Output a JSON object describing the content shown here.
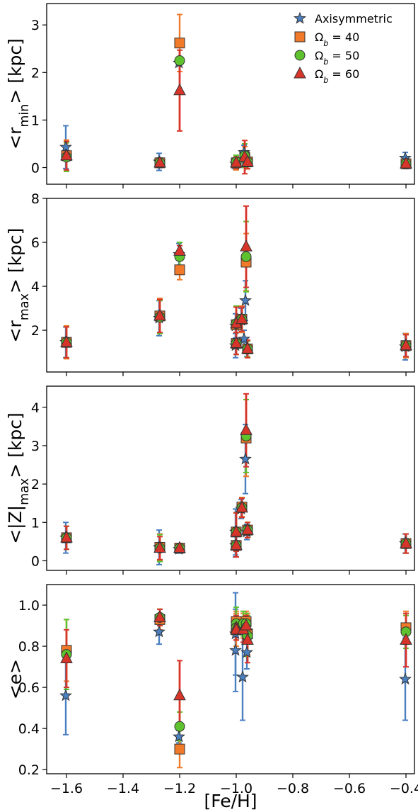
{
  "chart_data": [
    {
      "type": "scatter",
      "ylabel": "<r_min> [kpc]",
      "ylim": [
        -0.35,
        3.45
      ],
      "yticks": [
        0,
        1,
        2,
        3
      ],
      "xlim": [
        -1.67,
        -0.37
      ],
      "legend": {
        "placement": "top-right",
        "entries": [
          "Axisymmetric",
          "Ω_b = 40",
          "Ω_b = 50",
          "Ω_b = 60"
        ]
      },
      "series": [
        {
          "name": "Axisymmetric",
          "color": "#4a7fc0",
          "marker": "star",
          "points": [
            {
              "x": -1.6,
              "y": 0.43,
              "err": 0.45
            },
            {
              "x": -1.27,
              "y": 0.12,
              "err": 0.18
            },
            {
              "x": -1.2,
              "y": 2.2,
              "err": 0.0
            },
            {
              "x": -1.0,
              "y": 0.08,
              "err": 0.12
            },
            {
              "x": -0.97,
              "y": 0.32,
              "err": 0.15
            },
            {
              "x": -0.96,
              "y": 0.15,
              "err": 0.12
            },
            {
              "x": -0.4,
              "y": 0.2,
              "err": 0.12
            }
          ]
        },
        {
          "name": "Ω_b = 40",
          "color": "#f07a2a",
          "marker": "square",
          "points": [
            {
              "x": -1.6,
              "y": 0.25,
              "err": 0.33
            },
            {
              "x": -1.27,
              "y": 0.1,
              "err": 0.1
            },
            {
              "x": -1.2,
              "y": 2.62,
              "err": 0.6
            },
            {
              "x": -1.0,
              "y": 0.1,
              "err": 0.15
            },
            {
              "x": -0.97,
              "y": 0.22,
              "err": 0.22
            },
            {
              "x": -0.96,
              "y": 0.12,
              "err": 0.15
            },
            {
              "x": -0.4,
              "y": 0.08,
              "err": 0.1
            }
          ]
        },
        {
          "name": "Ω_b = 50",
          "color": "#5ec22e",
          "marker": "circle",
          "points": [
            {
              "x": -1.6,
              "y": 0.22,
              "err": 0.3
            },
            {
              "x": -1.27,
              "y": 0.1,
              "err": 0.1
            },
            {
              "x": -1.2,
              "y": 2.25,
              "err": 0.05
            },
            {
              "x": -1.0,
              "y": 0.12,
              "err": 0.14
            },
            {
              "x": -0.97,
              "y": 0.25,
              "err": 0.25
            },
            {
              "x": -0.96,
              "y": 0.12,
              "err": 0.14
            },
            {
              "x": -0.4,
              "y": 0.08,
              "err": 0.1
            }
          ]
        },
        {
          "name": "Ω_b = 60",
          "color": "#d8352a",
          "marker": "triangle",
          "points": [
            {
              "x": -1.6,
              "y": 0.25,
              "err": 0.3
            },
            {
              "x": -1.27,
              "y": 0.1,
              "err": 0.1
            },
            {
              "x": -1.2,
              "y": 1.62,
              "err": 0.85
            },
            {
              "x": -1.0,
              "y": 0.1,
              "err": 0.12
            },
            {
              "x": -0.97,
              "y": 0.22,
              "err": 0.35
            },
            {
              "x": -0.96,
              "y": 0.12,
              "err": 0.14
            },
            {
              "x": -0.4,
              "y": 0.08,
              "err": 0.1
            }
          ]
        }
      ]
    },
    {
      "type": "scatter",
      "ylabel": "<r_max> [kpc]",
      "ylim": [
        0.1,
        8.0
      ],
      "yticks": [
        2,
        4,
        6,
        8
      ],
      "xlim": [
        -1.67,
        -0.37
      ],
      "series": [
        {
          "name": "Axisymmetric",
          "color": "#4a7fc0",
          "marker": "star",
          "points": [
            {
              "x": -1.6,
              "y": 1.45,
              "err": 0.7
            },
            {
              "x": -1.27,
              "y": 2.55,
              "err": 0.8
            },
            {
              "x": -1.2,
              "y": 5.45,
              "err": 0.5
            },
            {
              "x": -1.0,
              "y": 2.2,
              "err": 0.55
            },
            {
              "x": -1.0,
              "y": 1.3,
              "err": 0.55
            },
            {
              "x": -0.98,
              "y": 2.45,
              "err": 0.55
            },
            {
              "x": -0.97,
              "y": 1.6,
              "err": 0.4
            },
            {
              "x": -0.965,
              "y": 3.35,
              "err": 0.9
            },
            {
              "x": -0.96,
              "y": 1.15,
              "err": 0.35
            },
            {
              "x": -0.4,
              "y": 1.25,
              "err": 0.6
            }
          ]
        },
        {
          "name": "Ω_b = 40",
          "color": "#f07a2a",
          "marker": "square",
          "points": [
            {
              "x": -1.6,
              "y": 1.45,
              "err": 0.75
            },
            {
              "x": -1.27,
              "y": 2.65,
              "err": 0.8
            },
            {
              "x": -1.2,
              "y": 4.75,
              "err": 0.45
            },
            {
              "x": -1.0,
              "y": 2.25,
              "err": 0.8
            },
            {
              "x": -1.0,
              "y": 1.4,
              "err": 0.5
            },
            {
              "x": -0.98,
              "y": 2.5,
              "err": 0.6
            },
            {
              "x": -0.965,
              "y": 5.1,
              "err": 1.3
            },
            {
              "x": -0.96,
              "y": 1.15,
              "err": 0.4
            },
            {
              "x": -0.4,
              "y": 1.3,
              "err": 0.55
            }
          ]
        },
        {
          "name": "Ω_b = 50",
          "color": "#5ec22e",
          "marker": "circle",
          "points": [
            {
              "x": -1.6,
              "y": 1.45,
              "err": 0.7
            },
            {
              "x": -1.27,
              "y": 2.6,
              "err": 0.75
            },
            {
              "x": -1.2,
              "y": 5.35,
              "err": 0.65
            },
            {
              "x": -1.0,
              "y": 2.3,
              "err": 0.8
            },
            {
              "x": -1.0,
              "y": 1.4,
              "err": 0.5
            },
            {
              "x": -0.98,
              "y": 2.5,
              "err": 0.55
            },
            {
              "x": -0.965,
              "y": 5.35,
              "err": 1.6
            },
            {
              "x": -0.96,
              "y": 1.15,
              "err": 0.35
            },
            {
              "x": -0.4,
              "y": 1.3,
              "err": 0.5
            }
          ]
        },
        {
          "name": "Ω_b = 60",
          "color": "#d8352a",
          "marker": "triangle",
          "points": [
            {
              "x": -1.6,
              "y": 1.45,
              "err": 0.7
            },
            {
              "x": -1.27,
              "y": 2.65,
              "err": 0.75
            },
            {
              "x": -1.2,
              "y": 5.6,
              "err": 0.25
            },
            {
              "x": -1.0,
              "y": 2.3,
              "err": 0.75
            },
            {
              "x": -1.0,
              "y": 1.4,
              "err": 0.5
            },
            {
              "x": -0.98,
              "y": 2.5,
              "err": 0.55
            },
            {
              "x": -0.965,
              "y": 5.8,
              "err": 1.85
            },
            {
              "x": -0.96,
              "y": 1.15,
              "err": 0.4
            },
            {
              "x": -0.4,
              "y": 1.3,
              "err": 0.5
            }
          ]
        }
      ]
    },
    {
      "type": "scatter",
      "ylabel": "<|Z|_max> [kpc]",
      "ylim": [
        -0.25,
        4.55
      ],
      "yticks": [
        0,
        1,
        2,
        3,
        4
      ],
      "xlim": [
        -1.67,
        -0.37
      ],
      "series": [
        {
          "name": "Axisymmetric",
          "color": "#4a7fc0",
          "marker": "star",
          "points": [
            {
              "x": -1.6,
              "y": 0.6,
              "err": 0.4
            },
            {
              "x": -1.27,
              "y": 0.35,
              "err": 0.45
            },
            {
              "x": -1.2,
              "y": 0.3,
              "err": 0.1
            },
            {
              "x": -1.0,
              "y": 0.75,
              "err": 0.6
            },
            {
              "x": -1.0,
              "y": 0.4,
              "err": 0.3
            },
            {
              "x": -0.98,
              "y": 1.35,
              "err": 0.25
            },
            {
              "x": -0.965,
              "y": 2.65,
              "err": 0.9
            },
            {
              "x": -0.96,
              "y": 0.75,
              "err": 0.2
            },
            {
              "x": -0.4,
              "y": 0.45,
              "err": 0.25
            }
          ]
        },
        {
          "name": "Ω_b = 40",
          "color": "#f07a2a",
          "marker": "square",
          "points": [
            {
              "x": -1.6,
              "y": 0.6,
              "err": 0.3
            },
            {
              "x": -1.27,
              "y": 0.35,
              "err": 0.35
            },
            {
              "x": -1.2,
              "y": 0.33,
              "err": 0.1
            },
            {
              "x": -1.0,
              "y": 0.75,
              "err": 0.5
            },
            {
              "x": -1.0,
              "y": 0.4,
              "err": 0.3
            },
            {
              "x": -0.98,
              "y": 1.4,
              "err": 0.25
            },
            {
              "x": -0.965,
              "y": 3.2,
              "err": 1.0
            },
            {
              "x": -0.96,
              "y": 0.8,
              "err": 0.2
            },
            {
              "x": -0.4,
              "y": 0.45,
              "err": 0.25
            }
          ]
        },
        {
          "name": "Ω_b = 50",
          "color": "#5ec22e",
          "marker": "circle",
          "points": [
            {
              "x": -1.6,
              "y": 0.6,
              "err": 0.3
            },
            {
              "x": -1.27,
              "y": 0.33,
              "err": 0.35
            },
            {
              "x": -1.2,
              "y": 0.33,
              "err": 0.1
            },
            {
              "x": -1.0,
              "y": 0.75,
              "err": 0.5
            },
            {
              "x": -1.0,
              "y": 0.4,
              "err": 0.3
            },
            {
              "x": -0.98,
              "y": 1.38,
              "err": 0.25
            },
            {
              "x": -0.965,
              "y": 3.25,
              "err": 0.95
            },
            {
              "x": -0.96,
              "y": 0.8,
              "err": 0.2
            },
            {
              "x": -0.4,
              "y": 0.45,
              "err": 0.25
            }
          ]
        },
        {
          "name": "Ω_b = 60",
          "color": "#d8352a",
          "marker": "triangle",
          "points": [
            {
              "x": -1.6,
              "y": 0.6,
              "err": 0.3
            },
            {
              "x": -1.27,
              "y": 0.33,
              "err": 0.3
            },
            {
              "x": -1.2,
              "y": 0.33,
              "err": 0.1
            },
            {
              "x": -1.0,
              "y": 0.75,
              "err": 0.5
            },
            {
              "x": -1.0,
              "y": 0.4,
              "err": 0.3
            },
            {
              "x": -0.98,
              "y": 1.38,
              "err": 0.25
            },
            {
              "x": -0.965,
              "y": 3.4,
              "err": 0.95
            },
            {
              "x": -0.96,
              "y": 0.8,
              "err": 0.2
            },
            {
              "x": -0.4,
              "y": 0.45,
              "err": 0.25
            }
          ]
        }
      ]
    },
    {
      "type": "scatter",
      "ylabel": "<e>",
      "xlabel": "[Fe/H]",
      "ylim": [
        0.18,
        1.1
      ],
      "yticks": [
        0.2,
        0.4,
        0.6,
        0.8,
        1.0
      ],
      "xlim": [
        -1.67,
        -0.37
      ],
      "xticks": [
        -1.6,
        -1.4,
        -1.2,
        -1.0,
        -0.8,
        -0.6,
        -0.4
      ],
      "xtick_labels": [
        "−1.6",
        "−1.4",
        "−1.2",
        "−1.0",
        "−0.8",
        "−0.6",
        "−0.4"
      ],
      "series": [
        {
          "name": "Axisymmetric",
          "color": "#4a7fc0",
          "marker": "star",
          "points": [
            {
              "x": -1.6,
              "y": 0.56,
              "err": 0.19
            },
            {
              "x": -1.27,
              "y": 0.87,
              "err": 0.06
            },
            {
              "x": -1.2,
              "y": 0.36,
              "err": 0.03
            },
            {
              "x": -1.0,
              "y": 0.78,
              "err": 0.2
            },
            {
              "x": -1.0,
              "y": 0.86,
              "err": 0.2
            },
            {
              "x": -0.975,
              "y": 0.65,
              "err": 0.21
            },
            {
              "x": -0.965,
              "y": 0.9,
              "err": 0.05
            },
            {
              "x": -0.96,
              "y": 0.77,
              "err": 0.08
            },
            {
              "x": -0.4,
              "y": 0.64,
              "err": 0.2
            }
          ]
        },
        {
          "name": "Ω_b = 40",
          "color": "#f07a2a",
          "marker": "square",
          "points": [
            {
              "x": -1.6,
              "y": 0.78,
              "err": 0.15
            },
            {
              "x": -1.27,
              "y": 0.93,
              "err": 0.05
            },
            {
              "x": -1.2,
              "y": 0.3,
              "err": 0.09
            },
            {
              "x": -1.0,
              "y": 0.88,
              "err": 0.08
            },
            {
              "x": -1.0,
              "y": 0.92,
              "err": 0.05
            },
            {
              "x": -0.975,
              "y": 0.9,
              "err": 0.06
            },
            {
              "x": -0.965,
              "y": 0.92,
              "err": 0.05
            },
            {
              "x": -0.96,
              "y": 0.86,
              "err": 0.1
            },
            {
              "x": -0.4,
              "y": 0.89,
              "err": 0.08
            }
          ]
        },
        {
          "name": "Ω_b = 50",
          "color": "#5ec22e",
          "marker": "circle",
          "points": [
            {
              "x": -1.6,
              "y": 0.76,
              "err": 0.17
            },
            {
              "x": -1.27,
              "y": 0.94,
              "err": 0.04
            },
            {
              "x": -1.2,
              "y": 0.41,
              "err": 0.07
            },
            {
              "x": -1.0,
              "y": 0.91,
              "err": 0.08
            },
            {
              "x": -1.0,
              "y": 0.89,
              "err": 0.06
            },
            {
              "x": -0.975,
              "y": 0.91,
              "err": 0.06
            },
            {
              "x": -0.965,
              "y": 0.91,
              "err": 0.05
            },
            {
              "x": -0.96,
              "y": 0.85,
              "err": 0.1
            },
            {
              "x": -0.4,
              "y": 0.87,
              "err": 0.08
            }
          ]
        },
        {
          "name": "Ω_b = 60",
          "color": "#d8352a",
          "marker": "triangle",
          "points": [
            {
              "x": -1.6,
              "y": 0.74,
              "err": 0.14
            },
            {
              "x": -1.27,
              "y": 0.94,
              "err": 0.04
            },
            {
              "x": -1.2,
              "y": 0.56,
              "err": 0.17
            },
            {
              "x": -1.0,
              "y": 0.89,
              "err": 0.06
            },
            {
              "x": -1.0,
              "y": 0.88,
              "err": 0.05
            },
            {
              "x": -0.975,
              "y": 0.88,
              "err": 0.06
            },
            {
              "x": -0.965,
              "y": 0.9,
              "err": 0.05
            },
            {
              "x": -0.96,
              "y": 0.83,
              "err": 0.11
            },
            {
              "x": -0.4,
              "y": 0.83,
              "err": 0.13
            }
          ]
        }
      ]
    }
  ]
}
